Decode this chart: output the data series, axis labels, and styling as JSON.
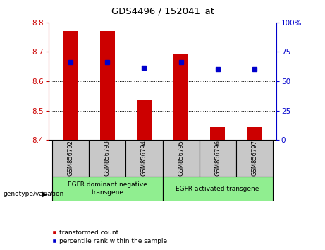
{
  "title": "GDS4496 / 152041_at",
  "samples": [
    "GSM856792",
    "GSM856793",
    "GSM856794",
    "GSM856795",
    "GSM856796",
    "GSM856797"
  ],
  "bar_values": [
    8.77,
    8.77,
    8.535,
    8.695,
    8.445,
    8.445
  ],
  "bar_base": 8.4,
  "dot_values": [
    8.665,
    8.665,
    8.645,
    8.665,
    8.64,
    8.64
  ],
  "ylim": [
    8.4,
    8.8
  ],
  "y2lim": [
    0,
    100
  ],
  "yticks": [
    8.4,
    8.5,
    8.6,
    8.7,
    8.8
  ],
  "y2ticks": [
    0,
    25,
    50,
    75,
    100
  ],
  "bar_color": "#cc0000",
  "dot_color": "#0000cc",
  "axis_color_left": "#cc0000",
  "axis_color_right": "#0000cc",
  "group1_label": "EGFR dominant negative\ntransgene",
  "group2_label": "EGFR activated transgene",
  "group1_indices": [
    0,
    1,
    2
  ],
  "group2_indices": [
    3,
    4,
    5
  ],
  "group_bg_color": "#90ee90",
  "sample_bg_color": "#c8c8c8",
  "legend_red_label": "transformed count",
  "legend_blue_label": "percentile rank within the sample",
  "xlabel_left": "genotype/variation",
  "bar_width": 0.4
}
